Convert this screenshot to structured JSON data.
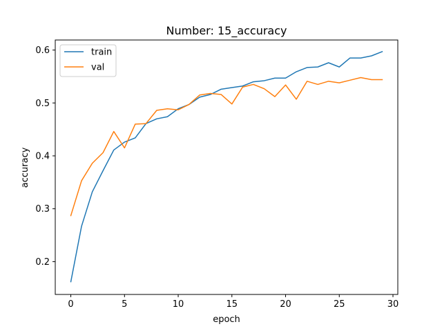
{
  "chart_data": {
    "type": "line",
    "title": "Number: 15_accuracy",
    "xlabel": "epoch",
    "ylabel": "accuracy",
    "xlim": [
      -1.45,
      30.45
    ],
    "ylim": [
      0.138,
      0.619
    ],
    "xticks": [
      0,
      5,
      10,
      15,
      20,
      25,
      30
    ],
    "yticks": [
      0.2,
      0.3,
      0.4,
      0.5,
      0.6
    ],
    "ytick_labels": [
      "0.2",
      "0.3",
      "0.4",
      "0.5",
      "0.6"
    ],
    "grid": false,
    "legend_position": "top-left",
    "x": [
      0,
      1,
      2,
      3,
      4,
      5,
      6,
      7,
      8,
      9,
      10,
      11,
      12,
      13,
      14,
      15,
      16,
      17,
      18,
      19,
      20,
      21,
      22,
      23,
      24,
      25,
      26,
      27,
      28,
      29
    ],
    "series": [
      {
        "name": "train",
        "color": "#1f77b4",
        "values": [
          0.162,
          0.267,
          0.332,
          0.372,
          0.411,
          0.426,
          0.434,
          0.461,
          0.47,
          0.474,
          0.489,
          0.497,
          0.511,
          0.516,
          0.526,
          0.529,
          0.532,
          0.54,
          0.542,
          0.547,
          0.547,
          0.559,
          0.567,
          0.568,
          0.576,
          0.568,
          0.585,
          0.585,
          0.589,
          0.597
        ]
      },
      {
        "name": "val",
        "color": "#ff7f0e",
        "values": [
          0.287,
          0.353,
          0.386,
          0.406,
          0.446,
          0.415,
          0.46,
          0.461,
          0.486,
          0.489,
          0.487,
          0.497,
          0.515,
          0.518,
          0.516,
          0.498,
          0.53,
          0.535,
          0.527,
          0.512,
          0.534,
          0.507,
          0.541,
          0.535,
          0.541,
          0.538,
          0.543,
          0.548,
          0.544,
          0.544
        ]
      }
    ]
  }
}
